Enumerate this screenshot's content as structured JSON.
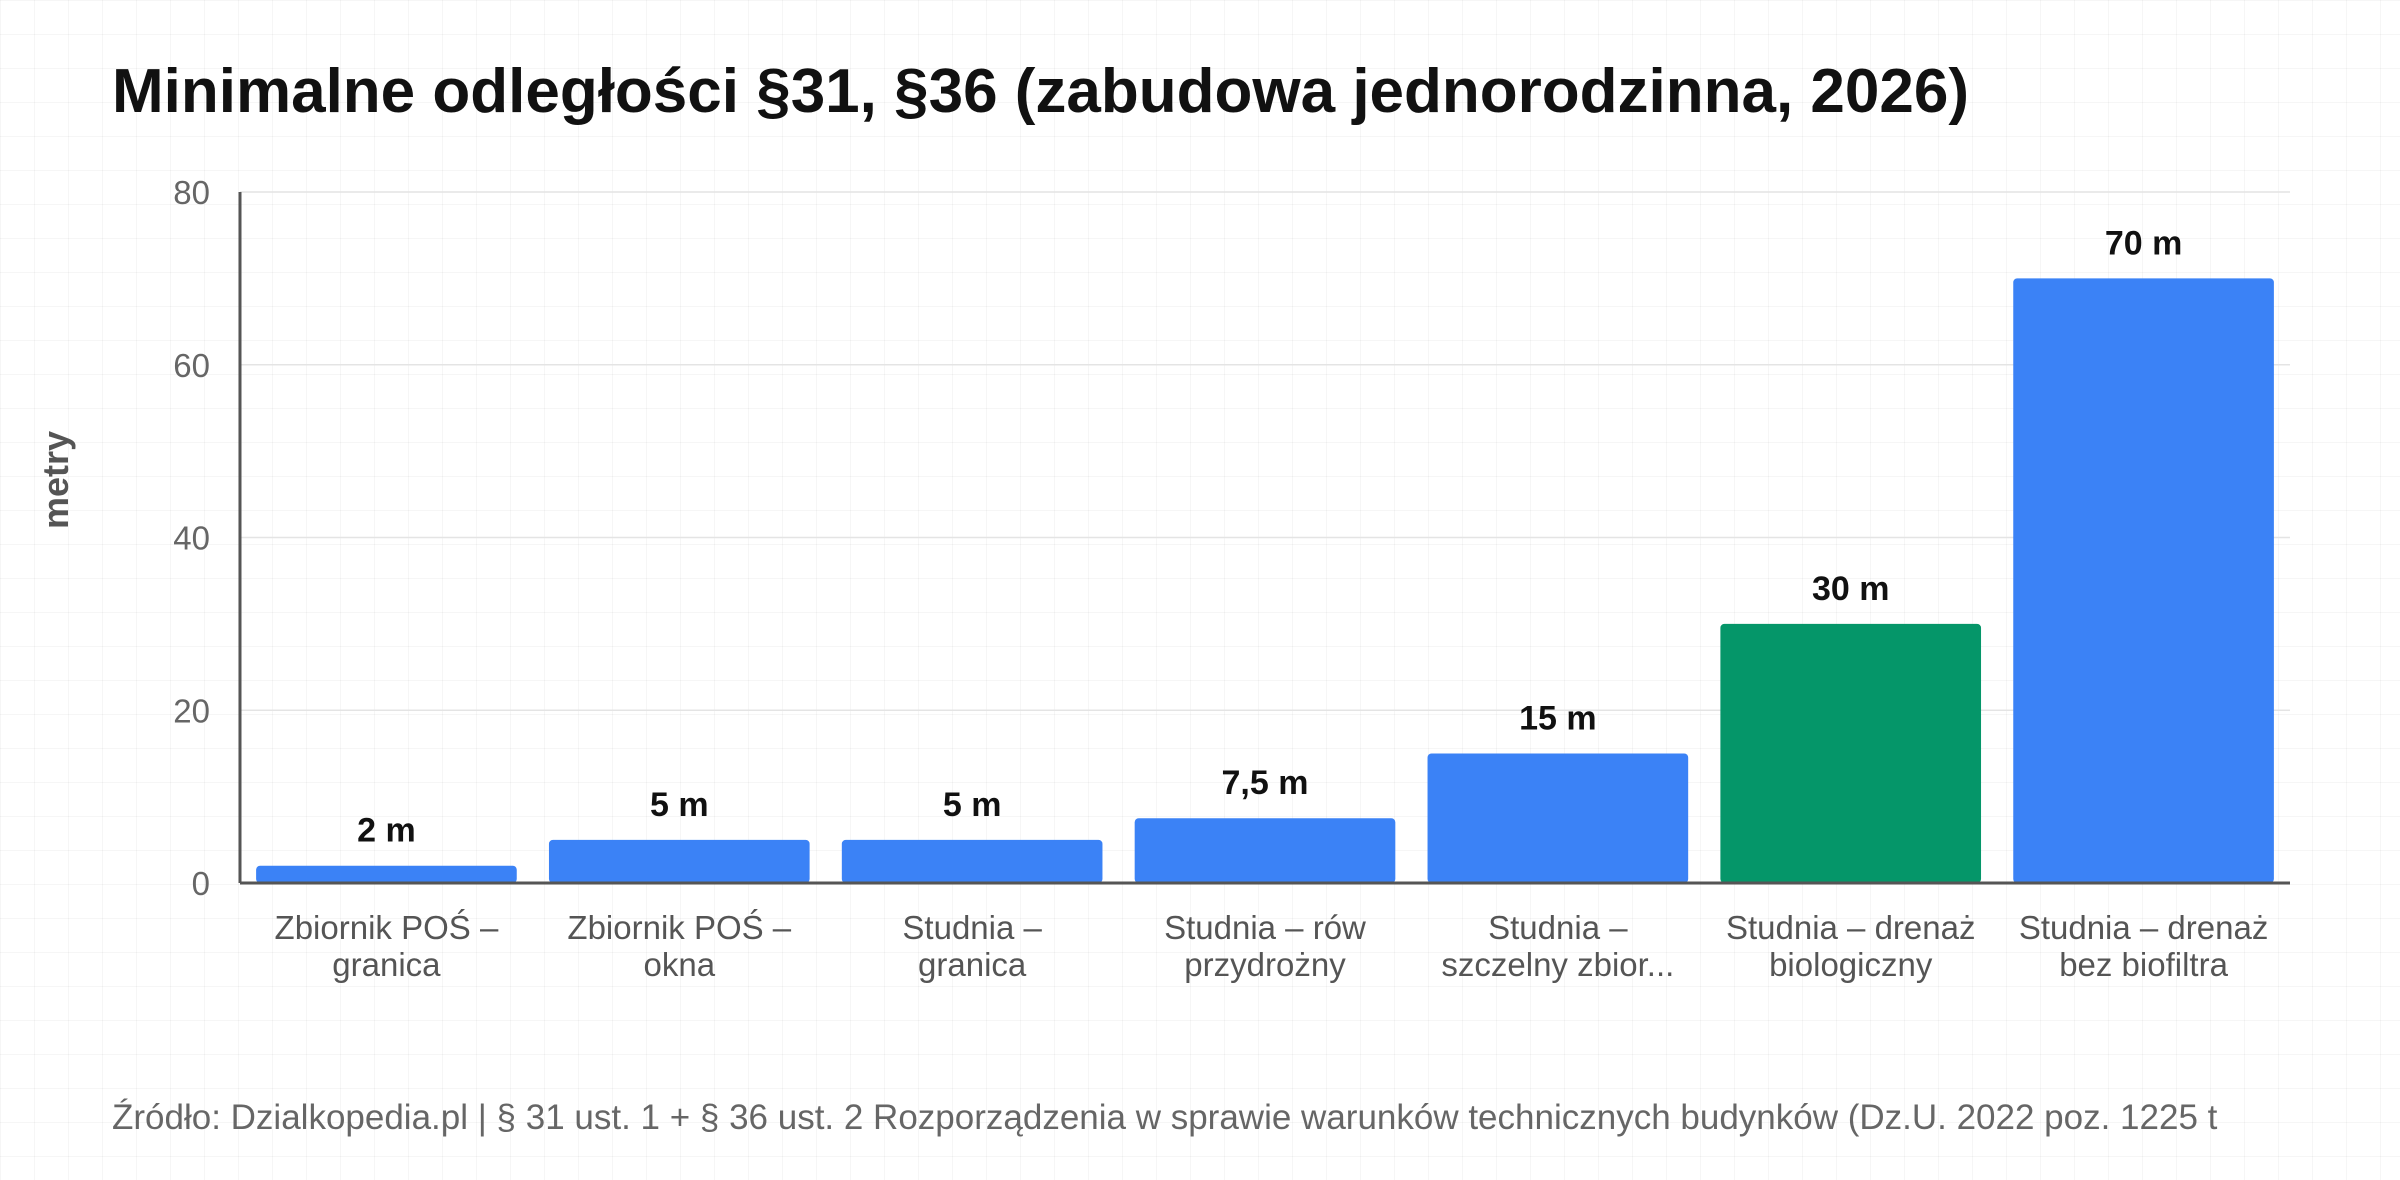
{
  "chart_data": {
    "type": "bar",
    "title": "Minimalne odległości §31, §36 (zabudowa jednorodzinna, 2026)",
    "xlabel": "",
    "ylabel": "metry",
    "ylim": [
      0,
      80
    ],
    "yticks": [
      "0",
      "20",
      "40",
      "60",
      "80"
    ],
    "grid": true,
    "legend": "none",
    "categories": [
      [
        "Zbiornik POŚ –",
        "granica"
      ],
      [
        "Zbiornik POŚ –",
        "okna"
      ],
      [
        "Studnia –",
        "granica"
      ],
      [
        "Studnia – rów",
        "przydrożny"
      ],
      [
        "Studnia –",
        "szczelny zbior..."
      ],
      [
        "Studnia – drenaż",
        "biologiczny"
      ],
      [
        "Studnia – drenaż",
        "bez biofiltra"
      ]
    ],
    "values": [
      2,
      5,
      5,
      7.5,
      15,
      30,
      70
    ],
    "data_labels": [
      "2 m",
      "5 m",
      "5 m",
      "7,5 m",
      "15 m",
      "30 m",
      "70 m"
    ],
    "bar_colors": [
      "#3b82f6",
      "#3b82f6",
      "#3b82f6",
      "#3b82f6",
      "#3b82f6",
      "#059669",
      "#3b82f6"
    ],
    "source": "Źródło: Dzialkopedia.pl | § 31 ust. 1 + § 36 ust. 2 Rozporządzenia w sprawie warunków technicznych budynków (Dz.U. 2022 poz. 1225 t"
  }
}
